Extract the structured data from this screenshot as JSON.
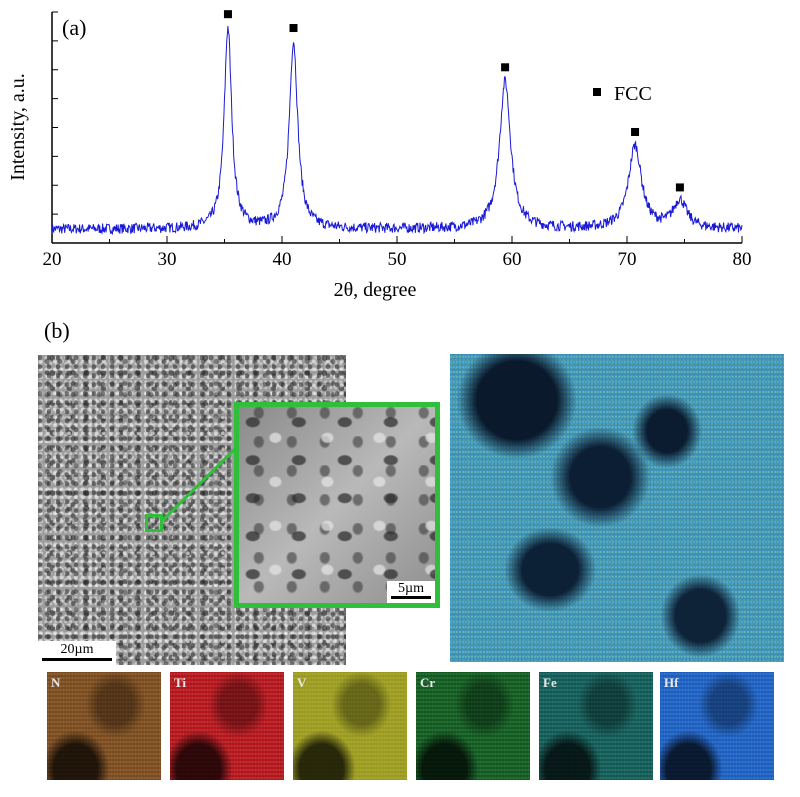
{
  "panel_a": {
    "label": "(a)",
    "legend_text": "FCC",
    "chart_data": {
      "type": "line",
      "xlabel": "2θ, degree",
      "ylabel": "Intensity, a.u.",
      "xlim": [
        20,
        80
      ],
      "x_ticks": [
        "20",
        "30",
        "40",
        "50",
        "60",
        "70",
        "80"
      ],
      "y_tick_labels": false,
      "series": [
        {
          "color": "#1a1ad6",
          "baseline": 0.06,
          "peaks": [
            {
              "x": 35.3,
              "height": 0.93
            },
            {
              "x": 41.0,
              "height": 0.87
            },
            {
              "x": 59.4,
              "height": 0.7
            },
            {
              "x": 70.7,
              "height": 0.42
            },
            {
              "x": 74.6,
              "height": 0.18
            }
          ]
        }
      ],
      "markers": {
        "symbol": "square",
        "label": "FCC",
        "x": [
          35.3,
          41.0,
          59.4,
          70.7,
          74.6
        ]
      }
    }
  },
  "panel_b": {
    "label": "(b)",
    "scale_main": "20µm",
    "scale_zoom": "5µm",
    "highlight_color": "#2fbf3a",
    "maps": [
      {
        "label": "N",
        "color": "#7a4a1c"
      },
      {
        "label": "Ti",
        "color": "#b3141a"
      },
      {
        "label": "V",
        "color": "#9a9a1c"
      },
      {
        "label": "Cr",
        "color": "#0f5a1e"
      },
      {
        "label": "Fe",
        "color": "#0f5a55"
      },
      {
        "label": "Hf",
        "color": "#1a5ec0"
      }
    ]
  }
}
